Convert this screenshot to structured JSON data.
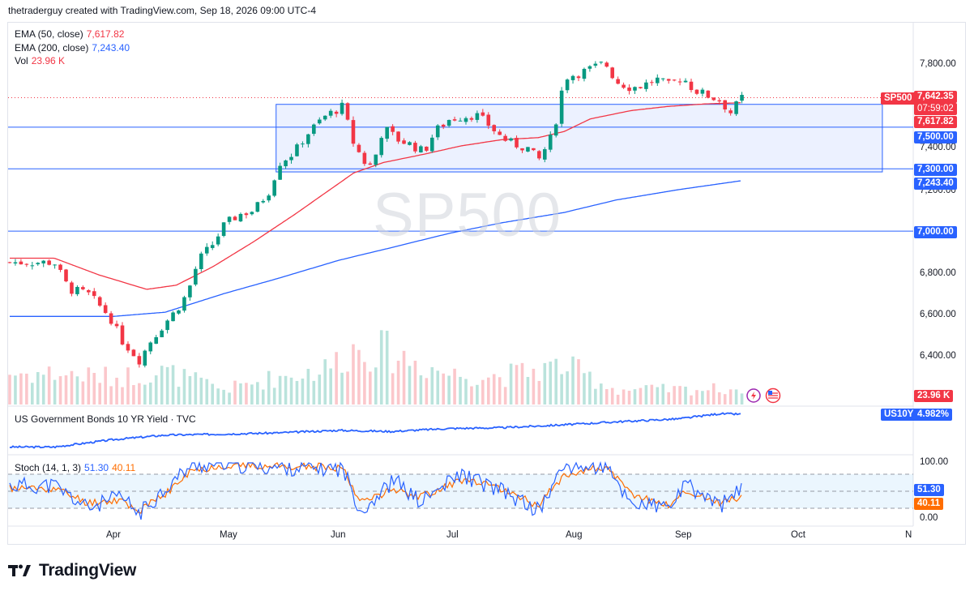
{
  "header": {
    "text": "thetraderguy created with TradingView.com, Sep 18, 2026 09:00 UTC-4"
  },
  "footer": {
    "brand": "TradingView"
  },
  "watermark": "SP500",
  "legend": {
    "ema50": {
      "label": "EMA (50, close)",
      "value": "7,617.82",
      "color": "#f23645"
    },
    "ema200": {
      "label": "EMA (200, close)",
      "value": "7,243.40",
      "color": "#2962ff"
    },
    "vol": {
      "label": "Vol",
      "value": "23.96 K",
      "color": "#f23645"
    },
    "bond": {
      "label": "US Government Bonds 10 YR Yield · TVC"
    },
    "stoch": {
      "label": "Stoch (14, 1, 3)",
      "k": "51.30",
      "d": "40.11",
      "k_color": "#2962ff",
      "d_color": "#ff6d00"
    }
  },
  "price_axis": {
    "ticks": [
      "7,800.00",
      "7,400.00",
      "7,200.00",
      "6,800.00",
      "6,600.00",
      "6,400.00"
    ],
    "badges": {
      "symbol": "SP500",
      "last": "7,642.35",
      "countdown": "07:59:02",
      "ema50": "7,617.82",
      "level_7500": "7,500.00",
      "level_7300": "7,300.00",
      "ema200": "7,243.40",
      "level_7000": "7,000.00",
      "volume": "23.96 K",
      "bond_symbol": "US10Y",
      "bond_value": "4.982%",
      "stoch_100": "100.00",
      "stoch_k": "51.30",
      "stoch_d": "40.11",
      "stoch_0": "0.00"
    }
  },
  "time_axis": {
    "labels": [
      "Apr",
      "May",
      "Jun",
      "Jul",
      "Aug",
      "Sep",
      "Oct",
      "N"
    ]
  },
  "colors": {
    "up": "#089981",
    "down": "#f23645",
    "ema50": "#f23645",
    "ema200": "#2962ff",
    "line": "#2962ff",
    "stoch_k": "#2962ff",
    "stoch_d": "#ff6d00"
  },
  "chart_data": {
    "type": "candlestick",
    "symbol": "SP500",
    "price_ylim": [
      6310,
      7880
    ],
    "horizontal_levels": [
      7500,
      7300,
      7000
    ],
    "range_box": {
      "x_start": "May 15",
      "x_end": "Oct 26",
      "top": 7610,
      "bottom": 7285
    },
    "close_series": {
      "Mar 16": 6850,
      "Mar 20": 6720,
      "Mar 25": 6700,
      "Mar 31": 6590,
      "Apr 3": 6480,
      "Apr 8": 6380,
      "Apr 11": 6470,
      "Apr 15": 6560,
      "Apr 18": 6620,
      "Apr 21": 6700,
      "Apr 24": 6860,
      "Apr 28": 6940,
      "May 1": 7030,
      "May 5": 7080,
      "May 9": 7100,
      "May 13": 7190,
      "May 16": 7330,
      "May 20": 7380,
      "May 23": 7460,
      "May 28": 7550,
      "Jun 2": 7600,
      "Jun 5": 7420,
      "Jun 9": 7300,
      "Jun 11": 7370,
      "Jun 13": 7500,
      "Jun 17": 7440,
      "Jun 20": 7420,
      "Jun 24": 7380,
      "Jun 27": 7480,
      "Jul 1": 7540,
      "Jul 4": 7550,
      "Jul 8": 7560,
      "Jul 11": 7520,
      "Jul 15": 7450,
      "Jul 18": 7420,
      "Jul 22": 7400,
      "Jul 25": 7340,
      "Jul 29": 7470,
      "Aug 1": 7740,
      "Aug 5": 7760,
      "Aug 8": 7780,
      "Aug 12": 7810,
      "Aug 15": 7720,
      "Aug 19": 7690,
      "Aug 22": 7700,
      "Aug 26": 7730,
      "Aug 29": 7700,
      "Sep 2": 7740,
      "Sep 5": 7680,
      "Sep 9": 7650,
      "Sep 12": 7630,
      "Sep 15": 7570,
      "Sep 18": 7642
    },
    "ema50_series": {
      "Mar 16": 6870,
      "Mar 28": 6790,
      "Apr 10": 6720,
      "Apr 18": 6740,
      "Apr 28": 6830,
      "May 9": 6950,
      "May 20": 7080,
      "May 28": 7180,
      "Jun 5": 7280,
      "Jun 13": 7330,
      "Jun 24": 7370,
      "Jul 4": 7410,
      "Jul 15": 7440,
      "Jul 25": 7450,
      "Aug 1": 7480,
      "Aug 8": 7540,
      "Aug 19": 7580,
      "Aug 29": 7600,
      "Sep 8": 7612,
      "Sep 18": 7618
    },
    "ema200_series": {
      "Mar 16": 6590,
      "Apr 1": 6590,
      "Apr 15": 6610,
      "May 1": 6700,
      "May 15": 6770,
      "Jun 1": 6860,
      "Jun 15": 6920,
      "Jul 1": 6990,
      "Jul 15": 7040,
      "Aug 1": 7090,
      "Aug 15": 7150,
      "Sep 1": 7200,
      "Sep 18": 7243
    },
    "volume_ylim": [
      0,
      140
    ],
    "volume_k": {
      "Mar 16": 46,
      "Apr 1": 40,
      "Apr 15": 48,
      "May 1": 22,
      "May 15": 40,
      "May 28": 52,
      "Jun 5": 82,
      "Jun 13": 80,
      "Jul 1": 45,
      "Jul 15": 42,
      "Aug 1": 58,
      "Aug 15": 22,
      "Sep 1": 22,
      "Sep 18": 24
    },
    "us10y_series": {
      "Mar 16": 4.1,
      "Apr 1": 4.3,
      "Apr 15": 4.42,
      "May 1": 4.45,
      "May 15": 4.48,
      "Jun 1": 4.55,
      "Jun 15": 4.52,
      "Jul 1": 4.6,
      "Jul 15": 4.62,
      "Aug 1": 4.7,
      "Aug 15": 4.78,
      "Sep 1": 4.86,
      "Sep 12": 5.0,
      "Sep 18": 4.982
    },
    "stoch_ylim": [
      0,
      100
    ],
    "stoch_levels": [
      80,
      50,
      20
    ],
    "stoch_k_series": {
      "Mar 16": 60,
      "Mar 25": 20,
      "Apr 3": 40,
      "Apr 8": 10,
      "Apr 15": 55,
      "Apr 22": 95,
      "May 1": 98,
      "May 15": 92,
      "Jun 2": 90,
      "Jun 7": 15,
      "Jun 16": 70,
      "Jun 23": 30,
      "Jul 4": 80,
      "Jul 15": 50,
      "Jul 25": 15,
      "Aug 1": 95,
      "Aug 12": 92,
      "Aug 19": 30,
      "Aug 29": 20,
      "Sep 3": 60,
      "Sep 12": 25,
      "Sep 18": 51.3
    },
    "stoch_d_series": {
      "Mar 16": 55,
      "Mar 25": 30,
      "Apr 3": 35,
      "Apr 8": 15,
      "Apr 15": 45,
      "Apr 22": 85,
      "May 1": 96,
      "May 15": 94,
      "Jun 2": 92,
      "Jun 7": 30,
      "Jun 16": 55,
      "Jun 23": 40,
      "Jul 4": 70,
      "Jul 15": 55,
      "Jul 25": 25,
      "Aug 1": 80,
      "Aug 12": 93,
      "Aug 19": 45,
      "Aug 29": 25,
      "Sep 3": 50,
      "Sep 12": 30,
      "Sep 18": 40.11
    }
  }
}
